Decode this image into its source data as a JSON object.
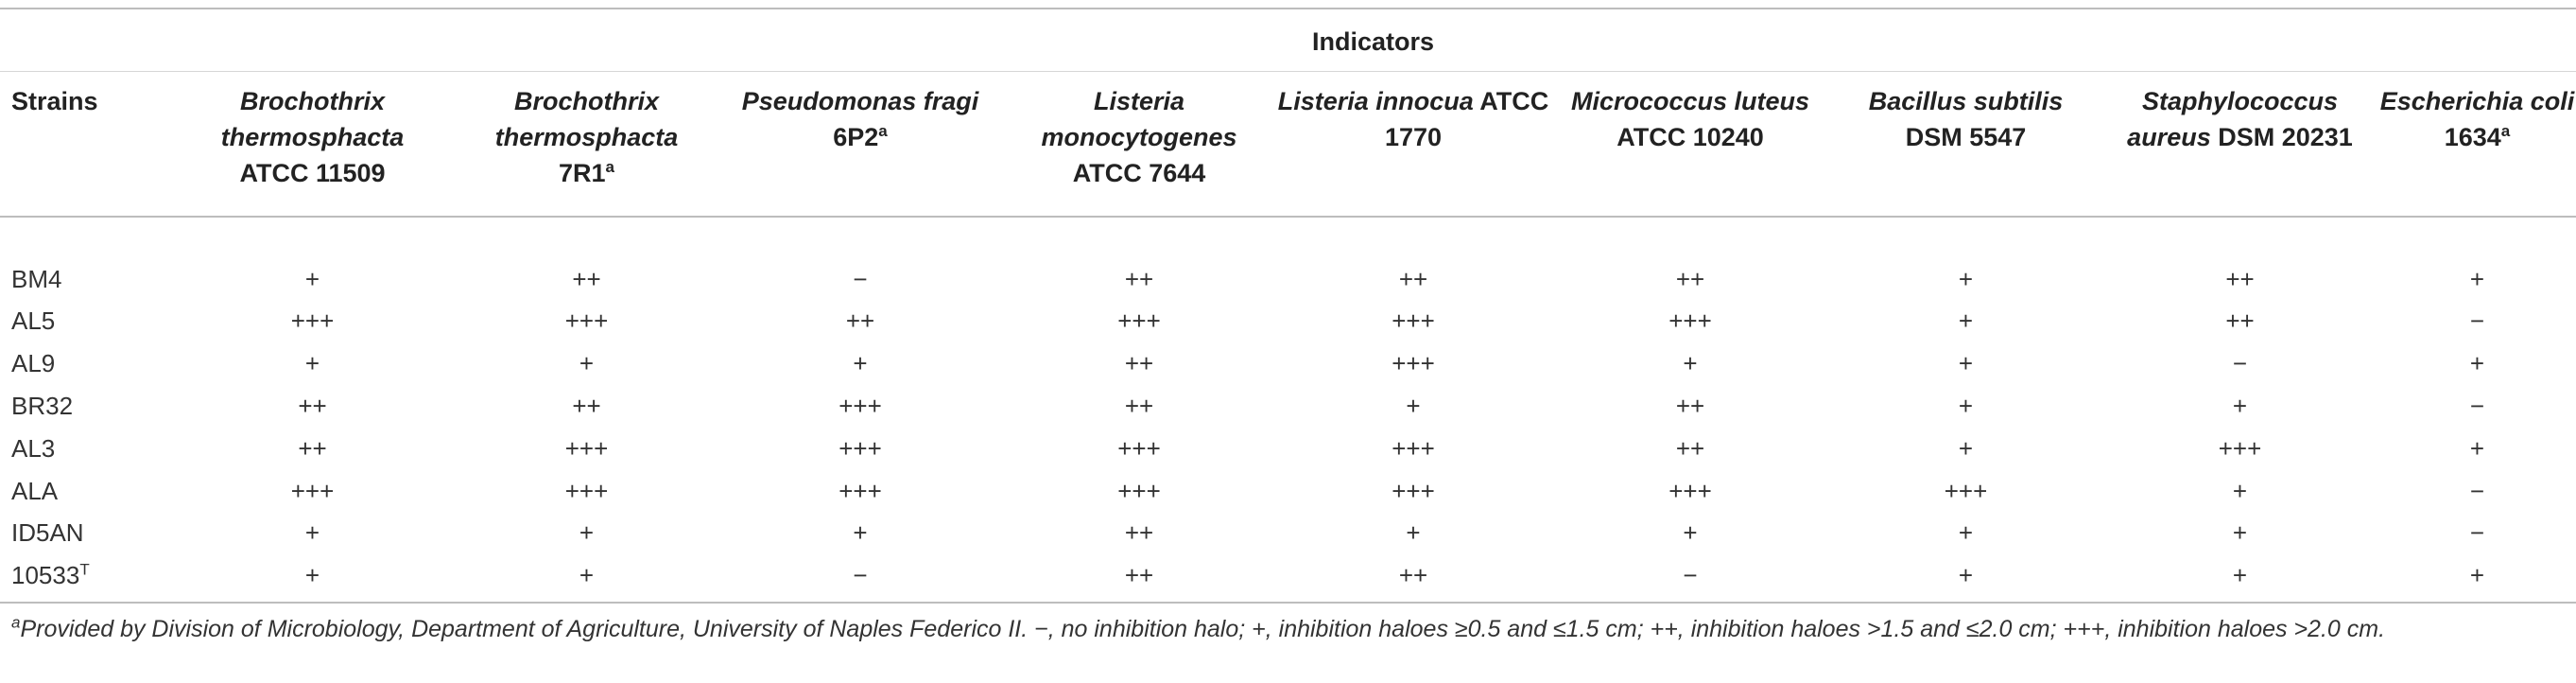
{
  "header": {
    "group_label": "Indicators",
    "strains_label": "Strains"
  },
  "indicators": [
    {
      "name": "Brochothrix thermosphacta",
      "rest": "ATCC 11509",
      "sup": ""
    },
    {
      "name": "Brochothrix thermosphacta",
      "rest": "7R1",
      "sup": "a"
    },
    {
      "name": "Pseudomonas fragi",
      "rest": "6P2",
      "sup": "a"
    },
    {
      "name": "Listeria monocytogenes",
      "rest": "ATCC 7644",
      "sup": ""
    },
    {
      "name": "Listeria innocua",
      "rest": "ATCC 1770",
      "sup": ""
    },
    {
      "name": "Micrococcus luteus",
      "rest": "ATCC 10240",
      "sup": ""
    },
    {
      "name": "Bacillus subtilis",
      "rest": "DSM 5547",
      "sup": ""
    },
    {
      "name": "Staphylococcus aureus",
      "rest": "DSM 20231",
      "sup": ""
    },
    {
      "name": "Escherichia coli",
      "rest": "1634",
      "sup": "a"
    }
  ],
  "rows": [
    {
      "strain": "BM4",
      "strain_sup": "",
      "values": [
        "+",
        "++",
        "−",
        "++",
        "++",
        "++",
        "+",
        "++",
        "+"
      ]
    },
    {
      "strain": "AL5",
      "strain_sup": "",
      "values": [
        "+++",
        "+++",
        "++",
        "+++",
        "+++",
        "+++",
        "+",
        "++",
        "−"
      ]
    },
    {
      "strain": "AL9",
      "strain_sup": "",
      "values": [
        "+",
        "+",
        "+",
        "++",
        "+++",
        "+",
        "+",
        "−",
        "+"
      ]
    },
    {
      "strain": "BR32",
      "strain_sup": "",
      "values": [
        "++",
        "++",
        "+++",
        "++",
        "+",
        "++",
        "+",
        "+",
        "−"
      ]
    },
    {
      "strain": "AL3",
      "strain_sup": "",
      "values": [
        "++",
        "+++",
        "+++",
        "+++",
        "+++",
        "++",
        "+",
        "+++",
        "+"
      ]
    },
    {
      "strain": "ALA",
      "strain_sup": "",
      "values": [
        "+++",
        "+++",
        "+++",
        "+++",
        "+++",
        "+++",
        "+++",
        "+",
        "−"
      ]
    },
    {
      "strain": "ID5AN",
      "strain_sup": "",
      "values": [
        "+",
        "+",
        "+",
        "++",
        "+",
        "+",
        "+",
        "+",
        "−"
      ]
    },
    {
      "strain": "10533",
      "strain_sup": "T",
      "values": [
        "+",
        "+",
        "−",
        "++",
        "++",
        "−",
        "+",
        "+",
        "+"
      ]
    }
  ],
  "footnote": {
    "marker": "a",
    "text": "Provided by Division of Microbiology, Department of Agriculture, University of Naples Federico II. −, no inhibition halo; +, inhibition haloes ≥0.5 and ≤1.5 cm; ++, inhibition haloes >1.5 and ≤2.0 cm; +++, inhibition haloes >2.0 cm."
  }
}
